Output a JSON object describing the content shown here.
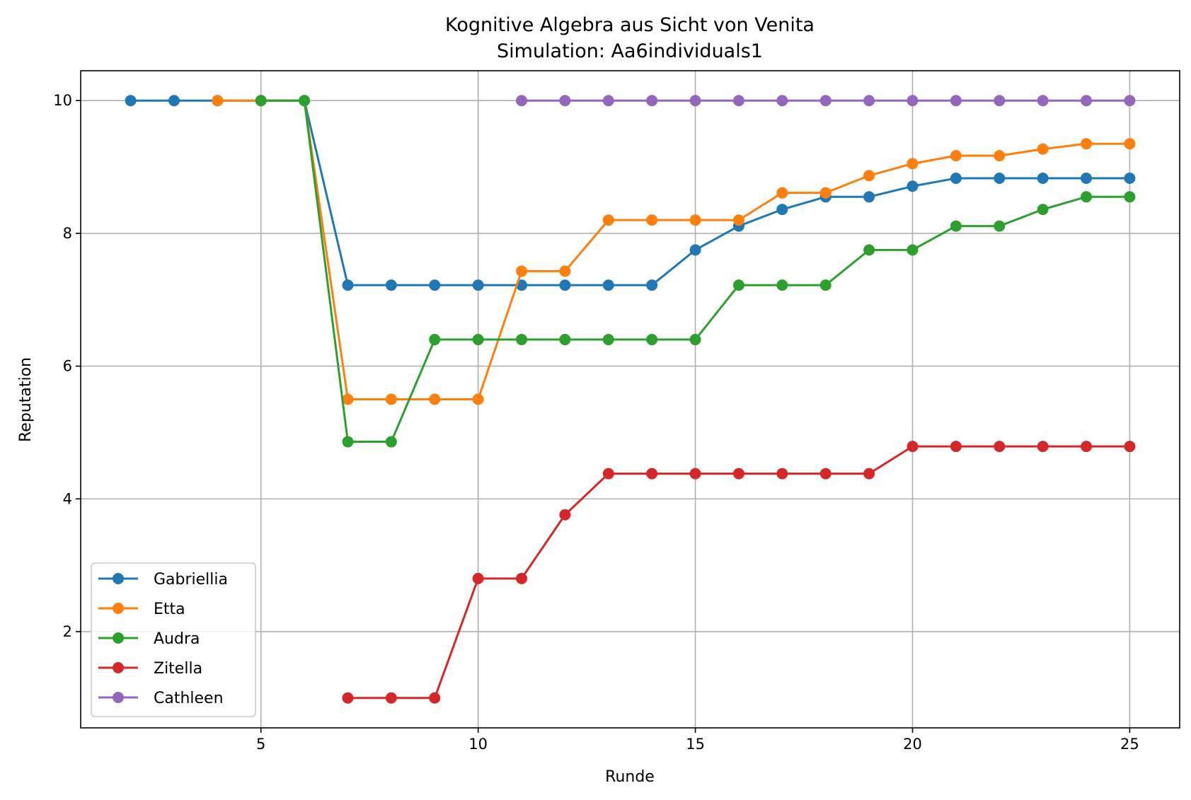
{
  "chart_data": {
    "type": "line",
    "title": "Kognitive Algebra aus Sicht von Venita",
    "subtitle": "Simulation: Aa6individuals1",
    "xlabel": "Runde",
    "ylabel": "Reputation",
    "xlim": [
      0.85,
      26.15
    ],
    "ylim": [
      0.55,
      10.45
    ],
    "xticks": [
      5,
      10,
      15,
      20,
      25
    ],
    "yticks": [
      2,
      4,
      6,
      8,
      10
    ],
    "grid": true,
    "legend_position": "lower-left",
    "series": [
      {
        "name": "Gabriellia",
        "color": "#1f77b4",
        "x": [
          2,
          3,
          4,
          5,
          6,
          7,
          8,
          9,
          10,
          11,
          12,
          13,
          14,
          15,
          16,
          17,
          18,
          19,
          20,
          21,
          22,
          23,
          24,
          25
        ],
        "y": [
          10,
          10,
          10,
          10,
          10,
          7.22,
          7.22,
          7.22,
          7.22,
          7.22,
          7.22,
          7.22,
          7.22,
          7.75,
          8.11,
          8.36,
          8.55,
          8.55,
          8.71,
          8.83,
          8.83,
          8.83,
          8.83,
          8.83
        ]
      },
      {
        "name": "Etta",
        "color": "#ff7f0e",
        "x": [
          4,
          5,
          6,
          7,
          8,
          9,
          10,
          11,
          12,
          13,
          14,
          15,
          16,
          17,
          18,
          19,
          20,
          21,
          22,
          23,
          24,
          25
        ],
        "y": [
          10,
          10,
          10,
          5.5,
          5.5,
          5.5,
          5.5,
          7.43,
          7.43,
          8.2,
          8.2,
          8.2,
          8.2,
          8.61,
          8.61,
          8.87,
          9.05,
          9.17,
          9.17,
          9.27,
          9.35,
          9.35
        ]
      },
      {
        "name": "Audra",
        "color": "#2ca02c",
        "x": [
          5,
          6,
          7,
          8,
          9,
          10,
          11,
          12,
          13,
          14,
          15,
          16,
          17,
          18,
          19,
          20,
          21,
          22,
          23,
          24,
          25
        ],
        "y": [
          10,
          10,
          4.86,
          4.86,
          6.4,
          6.4,
          6.4,
          6.4,
          6.4,
          6.4,
          6.4,
          7.22,
          7.22,
          7.22,
          7.75,
          7.75,
          8.11,
          8.11,
          8.36,
          8.55,
          8.55
        ]
      },
      {
        "name": "Zitella",
        "color": "#d62728",
        "x": [
          7,
          8,
          9,
          10,
          11,
          12,
          13,
          14,
          15,
          16,
          17,
          18,
          19,
          20,
          21,
          22,
          23,
          24,
          25
        ],
        "y": [
          1,
          1,
          1,
          2.8,
          2.8,
          3.76,
          4.38,
          4.38,
          4.38,
          4.38,
          4.38,
          4.38,
          4.38,
          4.79,
          4.79,
          4.79,
          4.79,
          4.79,
          4.79
        ]
      },
      {
        "name": "Cathleen",
        "color": "#9467bd",
        "x": [
          11,
          12,
          13,
          14,
          15,
          16,
          17,
          18,
          19,
          20,
          21,
          22,
          23,
          24,
          25
        ],
        "y": [
          10,
          10,
          10,
          10,
          10,
          10,
          10,
          10,
          10,
          10,
          10,
          10,
          10,
          10,
          10
        ]
      }
    ]
  }
}
